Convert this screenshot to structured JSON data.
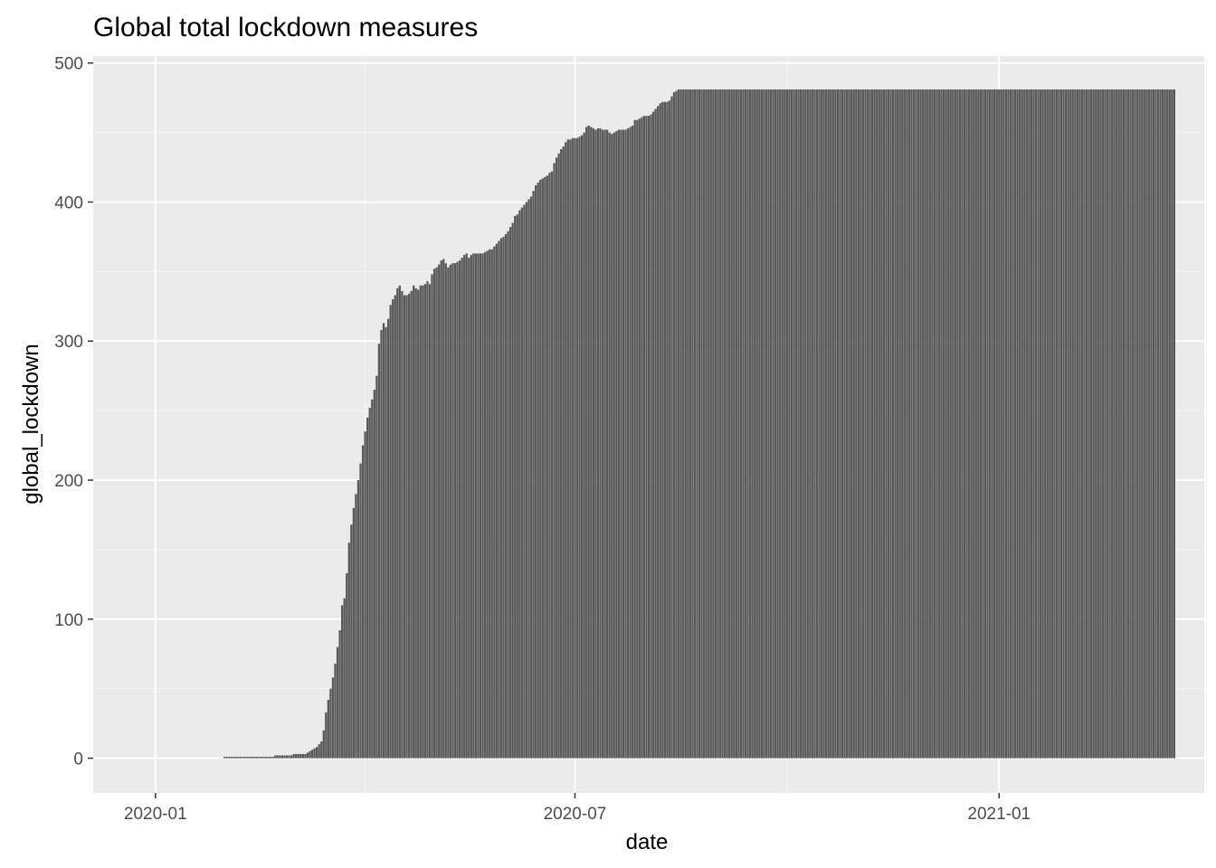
{
  "chart_data": {
    "type": "bar",
    "title": "Global total lockdown measures",
    "xlabel": "date",
    "ylabel": "global_lockdown",
    "x_range": [
      "2019-12-05",
      "2021-03-31"
    ],
    "ylim": [
      -25,
      505
    ],
    "x_ticks": [
      {
        "date": "2020-01-01",
        "label": "2020-01"
      },
      {
        "date": "2020-07-01",
        "label": "2020-07"
      },
      {
        "date": "2021-01-01",
        "label": "2021-01"
      }
    ],
    "y_ticks": [
      0,
      100,
      200,
      300,
      400,
      500
    ],
    "x_minor_dates": [
      "2020-04-01",
      "2020-10-01",
      "2021-04-01"
    ],
    "y_minor": [
      50,
      150,
      250,
      350,
      450
    ],
    "grid": true,
    "series": [
      {
        "values_daily_from_2020-01-31_to_2021-03-24": [
          1,
          1,
          1,
          1,
          1,
          1,
          1,
          1,
          1,
          1,
          1,
          1,
          1,
          1,
          1,
          1,
          1,
          1,
          1,
          1,
          1,
          1,
          2,
          2,
          2,
          2,
          2,
          2,
          2,
          2,
          3,
          3,
          3,
          3,
          3,
          3,
          4,
          5,
          6,
          7,
          8,
          10,
          12,
          20,
          33,
          42,
          50,
          58,
          68,
          80,
          92,
          110,
          115,
          133,
          155,
          168,
          180,
          190,
          200,
          212,
          225,
          235,
          245,
          252,
          258,
          265,
          275,
          298,
          308,
          313,
          310,
          316,
          326,
          330,
          333,
          338,
          340,
          336,
          333,
          333,
          334,
          336,
          340,
          338,
          337,
          340,
          340,
          341,
          343,
          341,
          348,
          352,
          353,
          355,
          358,
          359,
          356,
          353,
          355,
          356,
          356,
          357,
          358,
          360,
          362,
          363,
          360,
          362,
          363,
          363,
          363,
          363,
          363,
          364,
          365,
          366,
          366,
          368,
          370,
          372,
          374,
          375,
          377,
          379,
          382,
          385,
          390,
          391,
          394,
          396,
          398,
          400,
          402,
          404,
          408,
          412,
          414,
          416,
          417,
          418,
          419,
          421,
          422,
          428,
          432,
          435,
          438,
          440,
          443,
          445,
          445,
          446,
          446,
          446,
          447,
          448,
          450,
          454,
          455,
          454,
          453,
          452,
          453,
          453,
          452,
          452,
          452,
          450,
          449,
          450,
          451,
          452,
          452,
          452,
          452,
          453,
          454,
          455,
          459,
          459,
          460,
          461,
          462,
          462,
          462,
          463,
          465,
          467,
          469,
          471,
          472,
          472,
          472,
          473,
          476,
          479,
          480,
          481,
          481,
          481,
          481,
          481,
          481,
          481,
          481,
          481,
          481,
          481,
          481,
          481,
          481,
          481,
          481,
          481,
          481,
          481,
          481,
          481,
          481,
          481,
          481,
          481,
          481,
          481,
          481,
          481,
          481,
          481,
          481,
          481,
          481,
          481,
          481,
          481,
          481,
          481,
          481,
          481,
          481,
          481,
          481,
          481,
          481,
          481,
          481,
          481,
          481,
          481,
          481,
          481,
          481,
          481,
          481,
          481,
          481,
          481,
          481,
          481,
          481,
          481,
          481,
          481,
          481,
          481,
          481,
          481,
          481,
          481,
          481,
          481,
          481,
          481,
          481,
          481,
          481,
          481,
          481,
          481,
          481,
          481,
          481,
          481,
          481,
          481,
          481,
          481,
          481,
          481,
          481,
          481,
          481,
          481,
          481,
          481,
          481,
          481,
          481,
          481,
          481,
          481,
          481,
          481,
          481,
          481,
          481,
          481,
          481,
          481,
          481,
          481,
          481,
          481,
          481,
          481,
          481,
          481,
          481,
          481,
          481,
          481,
          481,
          481,
          481,
          481,
          481,
          481,
          481,
          481,
          481,
          481,
          481,
          481,
          481,
          481,
          481,
          481,
          481,
          481,
          481,
          481,
          481,
          481,
          481,
          481,
          481,
          481,
          481,
          481,
          481,
          481,
          481,
          481,
          481,
          481,
          481,
          481,
          481,
          481,
          481,
          481,
          481,
          481,
          481,
          481,
          481,
          481,
          481,
          481,
          481,
          481,
          481,
          481,
          481,
          481,
          481,
          481,
          481,
          481,
          481,
          481,
          481,
          481,
          481,
          481,
          481,
          481,
          481,
          481,
          481,
          481,
          481,
          481,
          481,
          481,
          481,
          481,
          481,
          481,
          481,
          481,
          481,
          481,
          481,
          481,
          481,
          481,
          481,
          481,
          481,
          481,
          481,
          481,
          481
        ]
      }
    ],
    "colors": {
      "bar_fill": "#595959",
      "panel_background": "#ebebeb",
      "grid_major": "#ffffff",
      "grid_minor": "#f5f5f5",
      "tick_text": "#4d4d4d"
    }
  }
}
